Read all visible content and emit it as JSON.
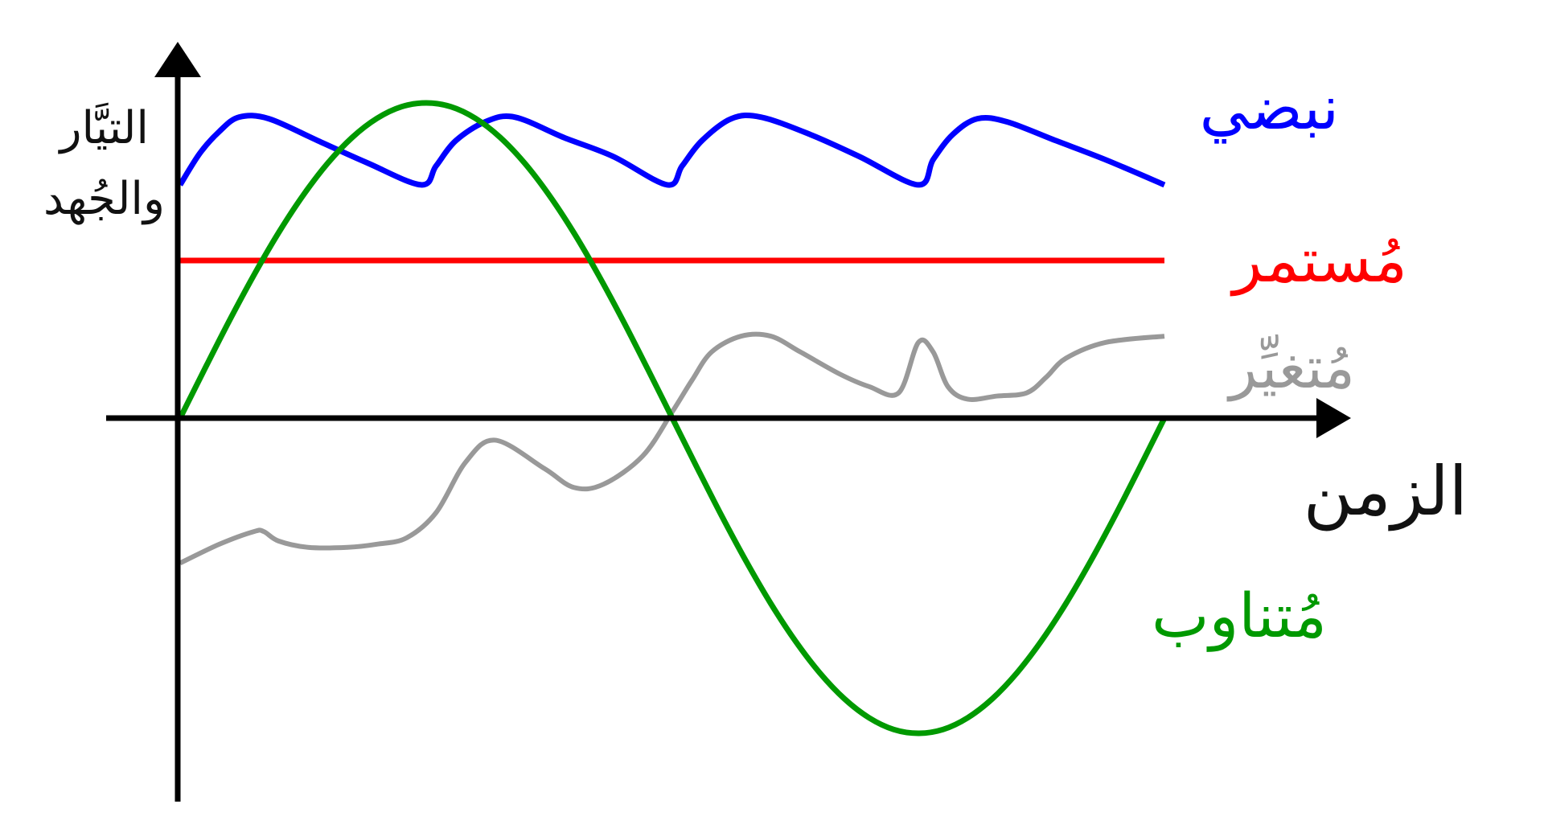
{
  "chart_data": {
    "type": "line",
    "ylabel_lines": [
      "التيَّار",
      "والجُهد"
    ],
    "xlabel": "الزمن",
    "grid": false,
    "legend": "right, inline labels",
    "xlim": [
      0,
      1
    ],
    "ylim": [
      -1,
      1
    ],
    "series": [
      {
        "name": "نبضي",
        "color": "#0000ff",
        "x": [
          0,
          0.02,
          0.04,
          0.06,
          0.09,
          0.14,
          0.19,
          0.245,
          0.26,
          0.28,
          0.31,
          0.34,
          0.39,
          0.44,
          0.495,
          0.51,
          0.53,
          0.56,
          0.59,
          0.64,
          0.69,
          0.75,
          0.765,
          0.785,
          0.81,
          0.84,
          0.89,
          0.94,
          1.0
        ],
        "values": [
          0.74,
          0.84,
          0.91,
          0.955,
          0.95,
          0.88,
          0.81,
          0.74,
          0.8,
          0.88,
          0.94,
          0.955,
          0.89,
          0.83,
          0.74,
          0.8,
          0.88,
          0.95,
          0.955,
          0.9,
          0.83,
          0.74,
          0.82,
          0.9,
          0.95,
          0.94,
          0.88,
          0.82,
          0.74
        ]
      },
      {
        "name": "مُستمر",
        "color": "#ff0000",
        "x": [
          0,
          1.0
        ],
        "values": [
          0.5,
          0.5
        ]
      },
      {
        "name": "مُتغيِّر",
        "color": "#999999",
        "x": [
          0,
          0.04,
          0.075,
          0.085,
          0.1,
          0.13,
          0.17,
          0.2,
          0.23,
          0.26,
          0.29,
          0.32,
          0.37,
          0.4,
          0.43,
          0.47,
          0.5,
          0.52,
          0.54,
          0.57,
          0.6,
          0.63,
          0.67,
          0.7,
          0.73,
          0.75,
          0.765,
          0.78,
          0.8,
          0.83,
          0.86,
          0.88,
          0.9,
          0.94,
          1.0
        ],
        "values": [
          -0.46,
          -0.4,
          -0.36,
          -0.36,
          -0.39,
          -0.41,
          -0.41,
          -0.4,
          -0.38,
          -0.3,
          -0.14,
          -0.07,
          -0.16,
          -0.22,
          -0.21,
          -0.12,
          0.02,
          0.12,
          0.21,
          0.26,
          0.26,
          0.21,
          0.14,
          0.1,
          0.08,
          0.24,
          0.21,
          0.1,
          0.06,
          0.07,
          0.08,
          0.13,
          0.19,
          0.24,
          0.26
        ]
      },
      {
        "name": "مُتناوب",
        "color": "#009900",
        "x": [
          0,
          0.025,
          0.05,
          0.075,
          0.1,
          0.125,
          0.15,
          0.175,
          0.2,
          0.225,
          0.25,
          0.275,
          0.3,
          0.325,
          0.35,
          0.375,
          0.4,
          0.425,
          0.45,
          0.475,
          0.5,
          0.525,
          0.55,
          0.575,
          0.6,
          0.625,
          0.65,
          0.675,
          0.7,
          0.725,
          0.75,
          0.775,
          0.8,
          0.825,
          0.85,
          0.875,
          0.9,
          0.925,
          0.95,
          0.975,
          1.0
        ],
        "values": [
          0.0,
          0.156,
          0.309,
          0.454,
          0.588,
          0.707,
          0.809,
          0.891,
          0.951,
          0.988,
          1.0,
          0.988,
          0.951,
          0.891,
          0.809,
          0.707,
          0.588,
          0.454,
          0.309,
          0.156,
          0.0,
          -0.156,
          -0.309,
          -0.454,
          -0.588,
          -0.707,
          -0.809,
          -0.891,
          -0.951,
          -0.988,
          -1.0,
          -0.988,
          -0.951,
          -0.891,
          -0.809,
          -0.707,
          -0.588,
          -0.454,
          -0.309,
          -0.156,
          0.0
        ]
      }
    ]
  }
}
